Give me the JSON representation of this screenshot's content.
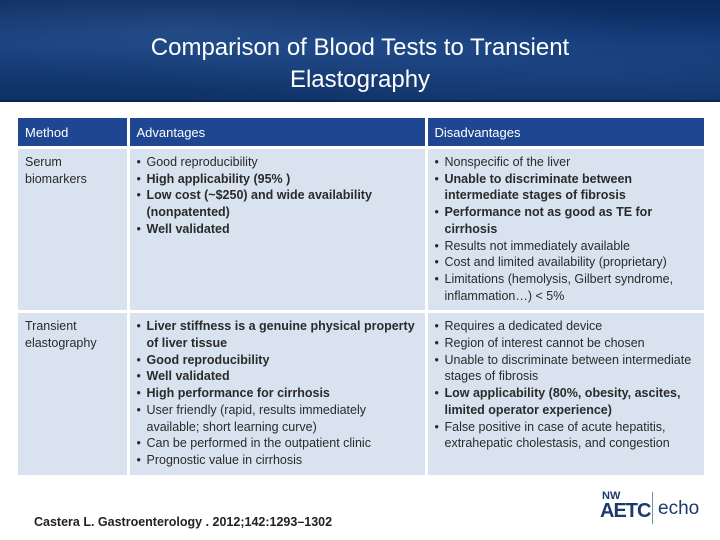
{
  "slide": {
    "title_line1": "Comparison of Blood Tests to Transient",
    "title_line2": "Elastography"
  },
  "table": {
    "headers": [
      "Method",
      "Advantages",
      "Disadvantages"
    ],
    "rows": [
      {
        "method_line1": "Serum",
        "method_line2": "biomarkers",
        "advantages": [
          {
            "text": "Good reproducibility",
            "bold": false
          },
          {
            "text": "High applicability (95% )",
            "bold": true
          },
          {
            "text": "Low cost (~$250) and wide availability (nonpatented)",
            "bold": true
          },
          {
            "text": "Well validated",
            "bold": true
          }
        ],
        "disadvantages": [
          {
            "text": "Nonspecific of the liver",
            "bold": false
          },
          {
            "text": "Unable to discriminate between intermediate stages of fibrosis",
            "bold": true
          },
          {
            "text": "Performance not as good as TE for cirrhosis",
            "bold": true
          },
          {
            "text": "Results not immediately available",
            "bold": false
          },
          {
            "text": "Cost and limited availability (proprietary)",
            "bold": false
          },
          {
            "text": "Limitations (hemolysis, Gilbert syndrome, inflammation…) < 5%",
            "bold": false
          }
        ]
      },
      {
        "method_line1": "Transient",
        "method_line2": "elastography",
        "advantages": [
          {
            "text": "Liver stiffness is a genuine physical property of liver tissue",
            "bold": true
          },
          {
            "text": "Good reproducibility",
            "bold": true
          },
          {
            "text": "Well validated",
            "bold": true
          },
          {
            "text": "High performance for cirrhosis",
            "bold": true
          },
          {
            "text": "User friendly (rapid, results immediately available; short learning curve)",
            "bold": false
          },
          {
            "text": "Can be performed in the outpatient clinic",
            "bold": false
          },
          {
            "text": "Prognostic value in cirrhosis",
            "bold": false
          }
        ],
        "disadvantages": [
          {
            "text": "Requires a dedicated device",
            "bold": false
          },
          {
            "text": "Region of interest cannot be chosen",
            "bold": false
          },
          {
            "text": "Unable to discriminate between intermediate stages of fibrosis",
            "bold": false
          },
          {
            "text": "Low applicability (80%, obesity, ascites, limited operator experience)",
            "bold": true
          },
          {
            "text": "False positive in case of acute hepatitis, extrahepatic cholestasis, and congestion",
            "bold": false
          }
        ]
      }
    ]
  },
  "citation": "Castera L. Gastroenterology . 2012;142:1293–1302",
  "logo": {
    "nw": "NW",
    "aetc": "AETC",
    "echo": "echo"
  },
  "colors": {
    "header_bg": "#123a78",
    "table_header_bg": "#1f4690",
    "table_cell_bg": "#d9e3f0"
  }
}
